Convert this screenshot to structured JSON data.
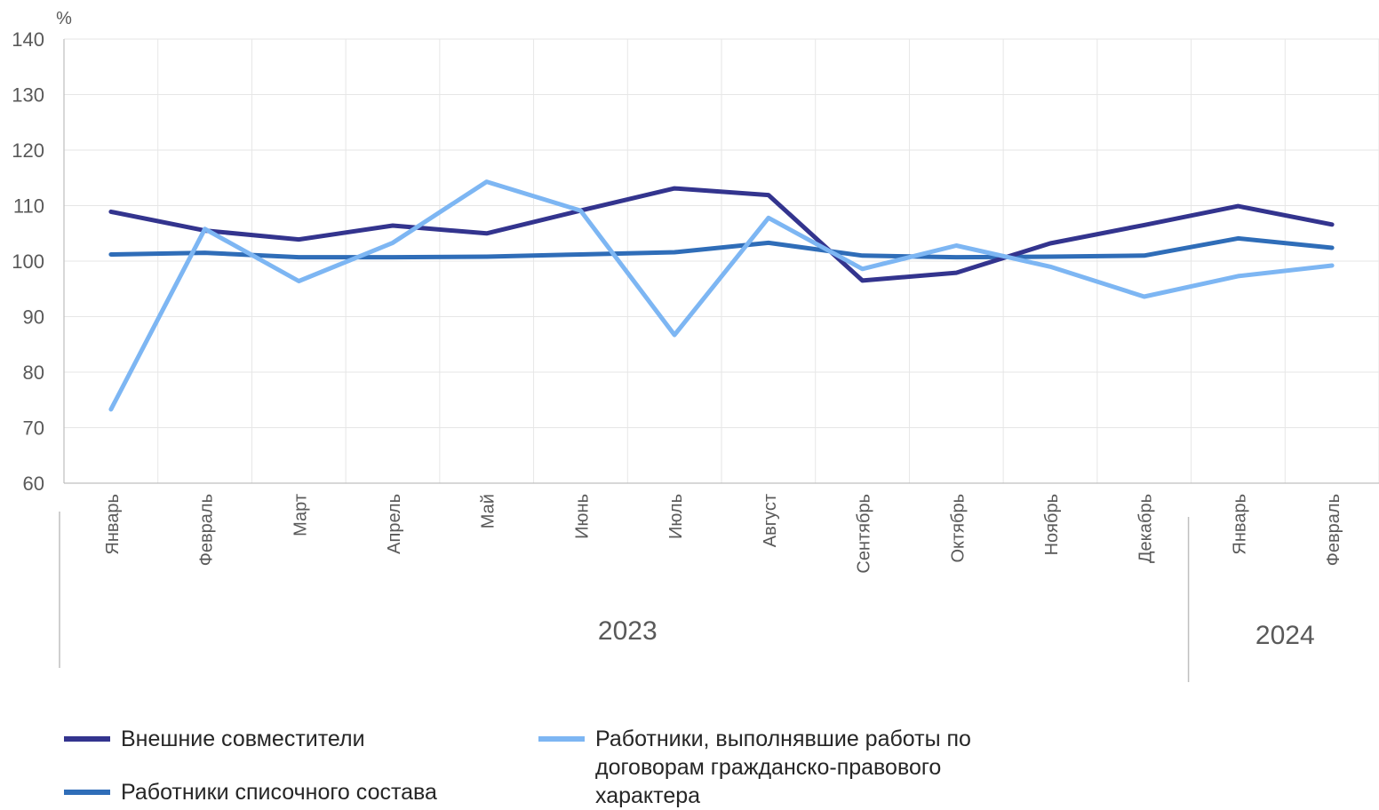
{
  "chart_data": {
    "type": "line",
    "y_unit_label": "%",
    "ylim": [
      60,
      140
    ],
    "yticks": [
      60,
      70,
      80,
      90,
      100,
      110,
      120,
      130,
      140
    ],
    "categories": [
      "Январь",
      "Февраль",
      "Март",
      "Апрель",
      "Май",
      "Июнь",
      "Июль",
      "Август",
      "Сентябрь",
      "Октябрь",
      "Ноябрь",
      "Декабрь",
      "Январь",
      "Февраль"
    ],
    "year_groups": [
      {
        "label": "2023",
        "from": 0,
        "to": 11
      },
      {
        "label": "2024",
        "from": 12,
        "to": 13
      }
    ],
    "grid": true,
    "legend_position": "bottom",
    "series": [
      {
        "name": "Внешние совместители",
        "color": "#33348E",
        "values": [
          108.9,
          105.5,
          103.9,
          106.4,
          105.0,
          109.1,
          113.1,
          111.9,
          96.5,
          97.9,
          103.2,
          106.5,
          109.9,
          106.6
        ]
      },
      {
        "name": "Работники списочного состава",
        "color": "#2F6DB8",
        "values": [
          101.2,
          101.5,
          100.7,
          100.7,
          100.8,
          101.2,
          101.6,
          103.3,
          101.0,
          100.7,
          100.8,
          101.0,
          104.1,
          102.4
        ]
      },
      {
        "name": "Работники, выполнявшие работы по договорам гражданско-правового характера",
        "color": "#7DB6F3",
        "values": [
          73.3,
          105.8,
          96.4,
          103.3,
          114.3,
          109.1,
          86.7,
          107.8,
          98.6,
          102.8,
          99.0,
          93.6,
          97.3,
          99.2
        ]
      }
    ]
  }
}
